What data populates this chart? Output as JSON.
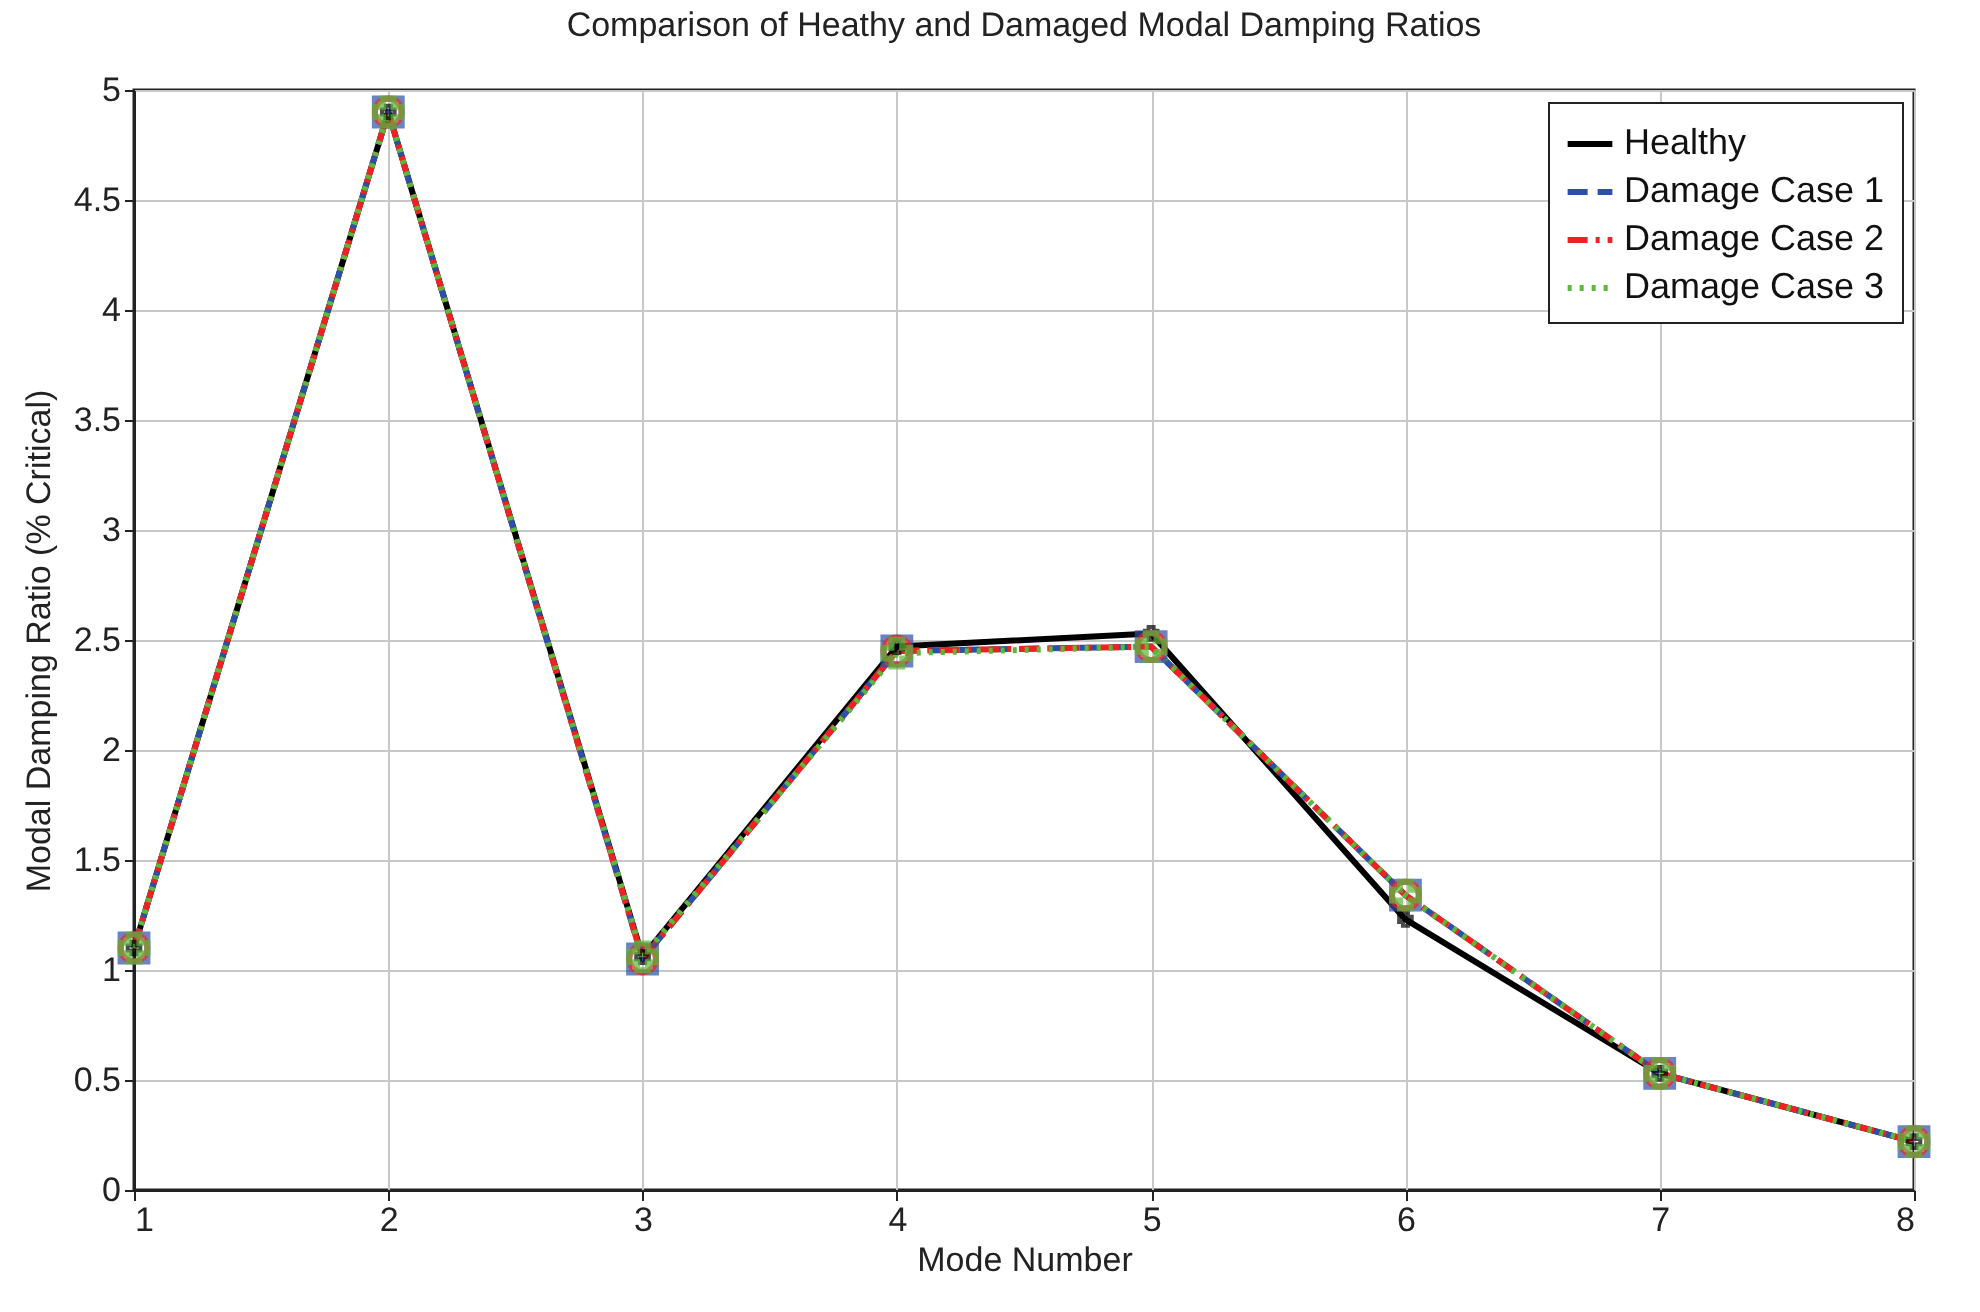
{
  "chart_data": {
    "type": "line",
    "title": "Comparison of Heathy and Damaged Modal Damping Ratios",
    "xlabel": "Mode Number",
    "ylabel": "Modal Damping Ratio (% Critical)",
    "x": [
      1,
      2,
      3,
      4,
      5,
      6,
      7,
      8
    ],
    "series": [
      {
        "name": "Healthy",
        "color": "#000000",
        "marker": "cross",
        "line_style": "solid",
        "values": [
          1.1,
          4.9,
          1.06,
          2.47,
          2.53,
          1.23,
          0.53,
          0.22
        ]
      },
      {
        "name": "Damage Case 1",
        "color": "#2e4fa8",
        "marker": "square",
        "line_style": "dashed",
        "values": [
          1.1,
          4.9,
          1.05,
          2.45,
          2.47,
          1.34,
          0.53,
          0.22
        ]
      },
      {
        "name": "Damage Case 2",
        "color": "#ee2222",
        "marker": "circle",
        "line_style": "dashdot",
        "values": [
          1.1,
          4.9,
          1.05,
          2.45,
          2.47,
          1.34,
          0.53,
          0.22
        ]
      },
      {
        "name": "Damage Case 3",
        "color": "#5ab93a",
        "marker": "cross",
        "line_style": "dotted",
        "values": [
          1.1,
          4.9,
          1.06,
          2.44,
          2.47,
          1.34,
          0.53,
          0.22
        ]
      }
    ],
    "xlim": [
      1,
      8
    ],
    "xticks": [
      1,
      2,
      3,
      4,
      5,
      6,
      7,
      8
    ],
    "ylim": [
      0,
      5
    ],
    "yticks": [
      0,
      0.5,
      1,
      1.5,
      2,
      2.5,
      3,
      3.5,
      4,
      4.5,
      5
    ],
    "grid": true,
    "legend": "top right"
  }
}
